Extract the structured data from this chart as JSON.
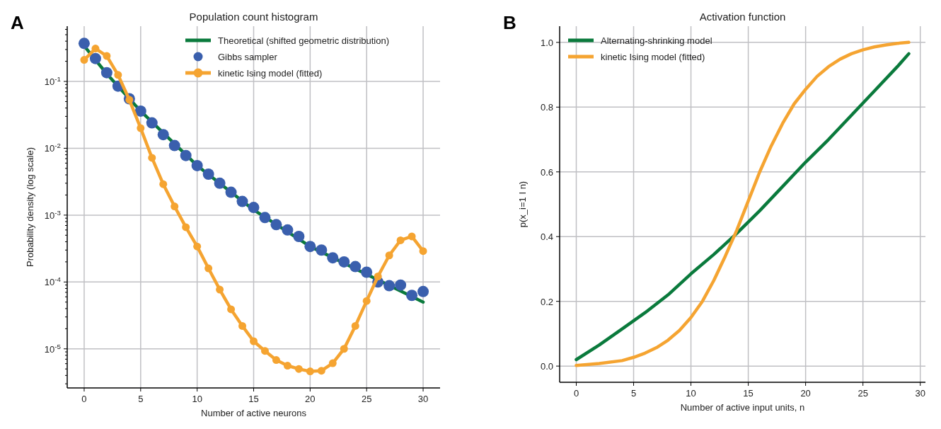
{
  "chart_data": [
    {
      "type": "line",
      "title": "Population count histogram",
      "xlabel": "Number of active neurons",
      "ylabel": "Probability density (log scale)",
      "annotations": [
        "A"
      ],
      "log": "y",
      "grid": true,
      "legend": "top right",
      "xlim": [
        -1.5,
        31.5
      ],
      "xticks": [
        0,
        5,
        10,
        15,
        20,
        25,
        30
      ],
      "ylim": [
        2.6e-06,
        0.67
      ],
      "yticks": [
        {
          "value": 1e-05,
          "label": "10$^{-5}$"
        },
        {
          "value": 0.0001,
          "label": "10$^{-4}$"
        },
        {
          "value": 0.001,
          "label": "10$^{-3}$"
        },
        {
          "value": 0.01,
          "label": "10$^{-2}$"
        },
        {
          "value": 0.1,
          "label": "10$^{-1}$"
        }
      ],
      "series": [
        {
          "name": "Theoretical (shifted geometric distribution)",
          "type": "line",
          "marker": "none",
          "color": "#0a7a3c",
          "x": [
            0,
            2,
            5,
            10,
            15,
            20,
            25,
            30
          ],
          "values": [
            0.34,
            0.13,
            0.036,
            0.0055,
            0.0012,
            0.00034,
            0.00013,
            5e-05
          ]
        },
        {
          "name": "Gibbs sampler",
          "type": "scatter",
          "marker": "circle",
          "color": "#3a5fad",
          "x": [
            0,
            1,
            2,
            3,
            4,
            5,
            6,
            7,
            8,
            9,
            10,
            11,
            12,
            13,
            14,
            15,
            16,
            17,
            18,
            19,
            20,
            21,
            22,
            23,
            24,
            25,
            26,
            27,
            28,
            29,
            30
          ],
          "values": [
            0.37,
            0.22,
            0.135,
            0.085,
            0.055,
            0.036,
            0.024,
            0.016,
            0.011,
            0.0078,
            0.0055,
            0.0041,
            0.003,
            0.0022,
            0.0016,
            0.0013,
            0.00092,
            0.00072,
            0.0006,
            0.00048,
            0.00034,
            0.0003,
            0.00023,
            0.0002,
            0.00017,
            0.00014,
            0.0001,
            8.8e-05,
            9e-05,
            6.3e-05,
            7.2e-05
          ]
        },
        {
          "name": "kinetic Ising model (fitted)",
          "type": "line",
          "marker": "circle",
          "color": "#f5a431",
          "x": [
            0,
            1,
            2,
            3,
            4,
            5,
            6,
            7,
            8,
            9,
            10,
            11,
            12,
            13,
            14,
            15,
            16,
            17,
            18,
            19,
            20,
            21,
            22,
            23,
            24,
            25,
            26,
            27,
            28,
            29,
            30
          ],
          "values": [
            0.21,
            0.31,
            0.24,
            0.125,
            0.053,
            0.02,
            0.0072,
            0.0029,
            0.00135,
            0.00066,
            0.00034,
            0.00016,
            7.7e-05,
            3.9e-05,
            2.2e-05,
            1.3e-05,
            9.3e-06,
            6.8e-06,
            5.6e-06,
            5e-06,
            4.6e-06,
            4.7e-06,
            6.1e-06,
            1e-05,
            2.2e-05,
            5.2e-05,
            0.000121,
            0.00025,
            0.00042,
            0.00048,
            0.00029
          ]
        }
      ]
    },
    {
      "type": "line",
      "title": "Activation function",
      "xlabel": "Number of active input units, n",
      "ylabel": "p(x_i=1 I n)",
      "annotations": [
        "B"
      ],
      "grid": true,
      "legend": "top left",
      "xlim": [
        -1.45,
        30.45
      ],
      "xticks": [
        0,
        5,
        10,
        15,
        20,
        25,
        30
      ],
      "ylim": [
        -0.05,
        1.05
      ],
      "yticks": [
        {
          "value": 0,
          "label": "0.0"
        },
        {
          "value": 0.2,
          "label": "0.2"
        },
        {
          "value": 0.4,
          "label": "0.4"
        },
        {
          "value": 0.6,
          "label": "0.6"
        },
        {
          "value": 0.8,
          "label": "0.8"
        },
        {
          "value": 1,
          "label": "1.0"
        }
      ],
      "series": [
        {
          "name": "Alternating-shrinking model",
          "type": "line",
          "color": "#0a7a3c",
          "x": [
            0,
            2,
            4,
            6,
            8,
            10,
            12,
            14,
            16,
            18,
            20,
            22,
            24,
            26,
            28,
            29
          ],
          "values": [
            0.02,
            0.065,
            0.115,
            0.165,
            0.22,
            0.285,
            0.345,
            0.41,
            0.48,
            0.555,
            0.63,
            0.7,
            0.775,
            0.85,
            0.925,
            0.965
          ]
        },
        {
          "name": "kinetic Ising model (fitted)",
          "type": "line",
          "color": "#f5a431",
          "x": [
            0,
            2,
            4,
            5,
            6,
            7,
            8,
            9,
            10,
            11,
            12,
            13,
            14,
            15,
            16,
            17,
            18,
            19,
            20,
            21,
            22,
            23,
            24,
            25,
            26,
            27,
            28,
            29
          ],
          "values": [
            0.002,
            0.008,
            0.017,
            0.027,
            0.04,
            0.057,
            0.08,
            0.11,
            0.15,
            0.2,
            0.265,
            0.34,
            0.42,
            0.51,
            0.6,
            0.68,
            0.75,
            0.81,
            0.855,
            0.895,
            0.925,
            0.948,
            0.965,
            0.977,
            0.986,
            0.992,
            0.997,
            1.0
          ]
        }
      ]
    }
  ]
}
